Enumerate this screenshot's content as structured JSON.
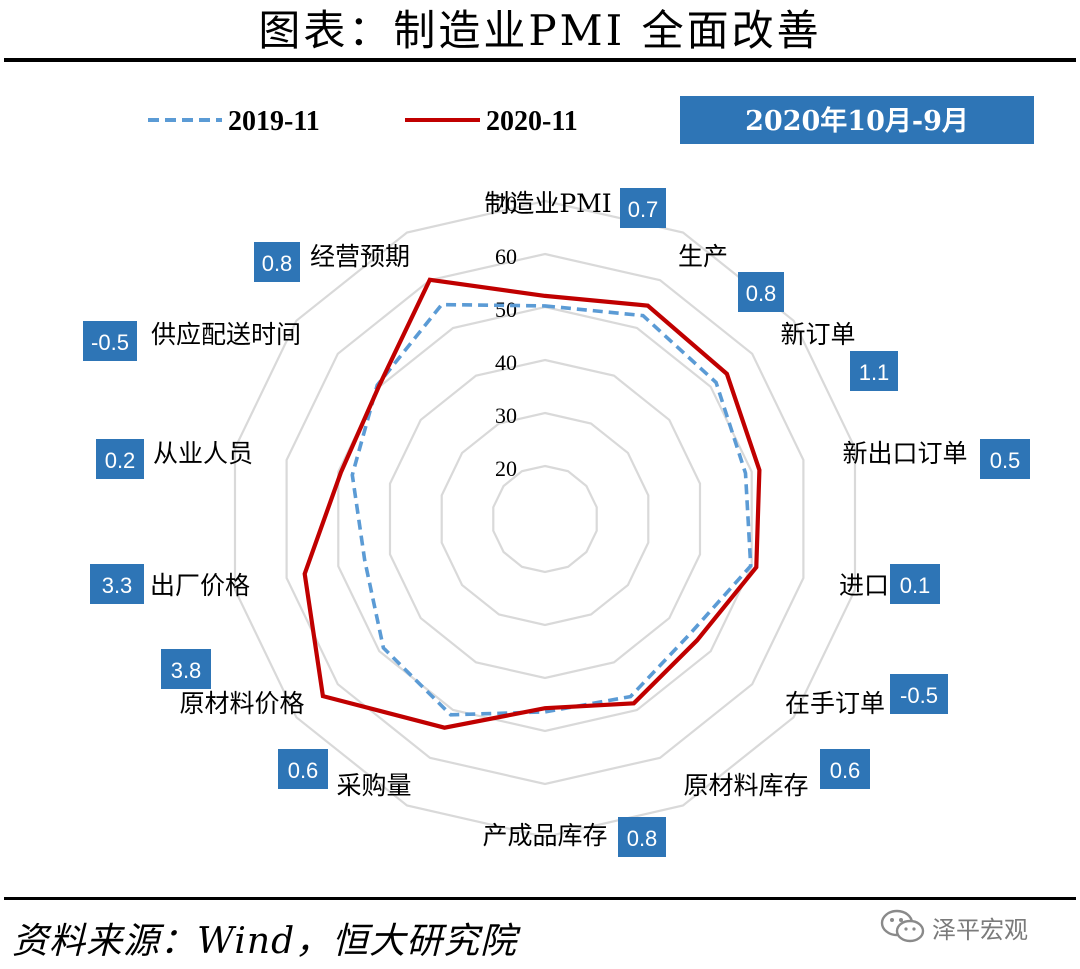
{
  "page": {
    "title": "图表：制造业PMI 全面改善",
    "source": "资料来源：Wind，恒大研究院",
    "watermark": "泽平宏观"
  },
  "colors": {
    "series_2019": "#5b9bd5",
    "series_2020": "#c00000",
    "badge": "#2e75b6",
    "grid": "#d9d9d9"
  },
  "header_badge": "2020年10月-9月",
  "chart_data": {
    "type": "radar",
    "axes": [
      "制造业PMI",
      "生产",
      "新订单",
      "新出口订单",
      "进口",
      "在手订单",
      "原材料库存",
      "产成品库存",
      "采购量",
      "原材料价格",
      "出厂价格",
      "从业人员",
      "供应配送时间",
      "经营预期"
    ],
    "axis_changes": [
      "0.7",
      "0.8",
      "1.1",
      "0.5",
      "0.1",
      "-0.5",
      "0.6",
      "0.8",
      "0.6",
      "3.8",
      "3.3",
      "0.2",
      "-0.5",
      "0.8"
    ],
    "r_ticks": [
      20,
      30,
      40,
      50,
      60,
      70
    ],
    "r_range": [
      10,
      70
    ],
    "grid": true,
    "legend_position": "top",
    "series": [
      {
        "name": "2019-11",
        "style": "dashed",
        "values": [
          50.2,
          52.6,
          51.3,
          48.8,
          49.8,
          44.9,
          47.2,
          46.4,
          51.0,
          49.0,
          44.9,
          47.3,
          50.5,
          54.9
        ]
      },
      {
        "name": "2020-11",
        "style": "solid",
        "values": [
          52.1,
          54.7,
          53.9,
          51.5,
          50.9,
          46.7,
          48.6,
          45.7,
          53.7,
          63.6,
          56.5,
          49.5,
          50.1,
          60.1
        ]
      }
    ]
  }
}
